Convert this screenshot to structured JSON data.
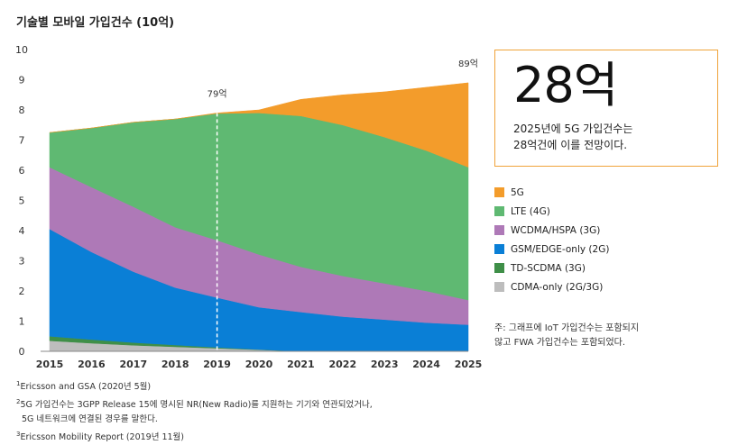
{
  "chart_data": {
    "type": "area",
    "stacked": true,
    "title": "기술별 모바일 가입건수 (10억)",
    "x": [
      "2015",
      "2016",
      "2017",
      "2018",
      "2019",
      "2020",
      "2021",
      "2022",
      "2023",
      "2024",
      "2025"
    ],
    "ylim": [
      0,
      10
    ],
    "yticks": [
      0,
      1,
      2,
      3,
      4,
      5,
      6,
      7,
      8,
      9,
      10
    ],
    "grid": false,
    "series": [
      {
        "name": "CDMA-only (2G/3G)",
        "color": "#bdbdbd",
        "values": [
          0.35,
          0.27,
          0.2,
          0.15,
          0.1,
          0.05,
          0,
          0,
          0,
          0,
          0
        ]
      },
      {
        "name": "TD-SCDMA (3G)",
        "color": "#3f8f48",
        "values": [
          0.15,
          0.12,
          0.09,
          0.06,
          0.03,
          0.01,
          0,
          0,
          0,
          0,
          0
        ]
      },
      {
        "name": "GSM/EDGE-only (2G)",
        "color": "#0a7fd6",
        "values": [
          3.55,
          2.9,
          2.35,
          1.9,
          1.65,
          1.4,
          1.3,
          1.15,
          1.05,
          0.95,
          0.88
        ]
      },
      {
        "name": "WCDMA/HSPA (3G)",
        "color": "#ae79b7",
        "values": [
          2.05,
          2.15,
          2.15,
          2.0,
          1.9,
          1.75,
          1.5,
          1.35,
          1.2,
          1.05,
          0.82
        ]
      },
      {
        "name": "LTE (4G)",
        "color": "#5fb972",
        "values": [
          1.15,
          1.96,
          2.8,
          3.59,
          4.2,
          4.69,
          5.0,
          5.0,
          4.85,
          4.65,
          4.4
        ]
      },
      {
        "name": "5G",
        "color": "#f39c2b",
        "values": [
          0,
          0,
          0,
          0,
          0.02,
          0.1,
          0.55,
          1.0,
          1.5,
          2.1,
          2.8
        ]
      }
    ],
    "annotations": [
      {
        "x": "2019",
        "label": "79억",
        "total": 7.9,
        "dashed_line": true
      },
      {
        "x": "2025",
        "label": "89억",
        "total": 8.9,
        "dashed_line": false
      }
    ]
  },
  "highlight": {
    "value": "28억",
    "description": "2025년에 5G 가입건수는\n28억건에 이를 전망이다."
  },
  "legend_order": [
    "5G",
    "LTE (4G)",
    "WCDMA/HSPA (3G)",
    "GSM/EDGE-only (2G)",
    "TD-SCDMA (3G)",
    "CDMA-only (2G/3G)"
  ],
  "side_note": "주: 그래프에 IoT 가입건수는 포함되지\n않고 FWA 가입건수는 포함되었다.",
  "footnotes": [
    {
      "mark": "1",
      "text": "Ericsson and GSA (2020년 5월)"
    },
    {
      "mark": "2",
      "text": "5G 가입건수는 3GPP Release 15에 명시된 NR(New Radio)를 지원하는 기기와 연관되었거나,"
    },
    {
      "mark": "",
      "text": "5G 네트워크에 연결된 경우를 말한다."
    },
    {
      "mark": "3",
      "text": "Ericsson Mobility Report (2019년 11월)"
    }
  ]
}
